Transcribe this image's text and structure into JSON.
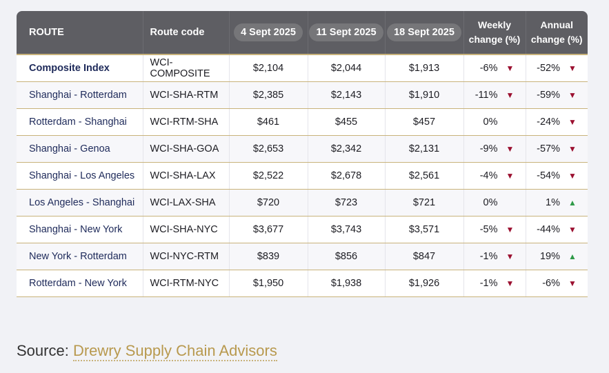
{
  "table": {
    "headers": {
      "route": "ROUTE",
      "route_code": "Route code",
      "date1": "4 Sept 2025",
      "date2": "11 Sept 2025",
      "date3": "18 Sept 2025",
      "weekly_line1": "Weekly",
      "weekly_line2": "change (%)",
      "annual_line1": "Annual",
      "annual_line2": "change (%)"
    },
    "rows": [
      {
        "route": "Composite Index",
        "code": "WCI-COMPOSITE",
        "d1": "$2,104",
        "d2": "$2,044",
        "d3": "$1,913",
        "weekly": "-6%",
        "weekly_dir": "down",
        "annual": "-52%",
        "annual_dir": "down"
      },
      {
        "route": "Shanghai - Rotterdam",
        "code": "WCI-SHA-RTM",
        "d1": "$2,385",
        "d2": "$2,143",
        "d3": "$1,910",
        "weekly": "-11%",
        "weekly_dir": "down",
        "annual": "-59%",
        "annual_dir": "down"
      },
      {
        "route": "Rotterdam - Shanghai",
        "code": "WCI-RTM-SHA",
        "d1": "$461",
        "d2": "$455",
        "d3": "$457",
        "weekly": "0%",
        "weekly_dir": "none",
        "annual": "-24%",
        "annual_dir": "down"
      },
      {
        "route": "Shanghai - Genoa",
        "code": "WCI-SHA-GOA",
        "d1": "$2,653",
        "d2": "$2,342",
        "d3": "$2,131",
        "weekly": "-9%",
        "weekly_dir": "down",
        "annual": "-57%",
        "annual_dir": "down"
      },
      {
        "route": "Shanghai - Los Angeles",
        "code": "WCI-SHA-LAX",
        "d1": "$2,522",
        "d2": "$2,678",
        "d3": "$2,561",
        "weekly": "-4%",
        "weekly_dir": "down",
        "annual": "-54%",
        "annual_dir": "down"
      },
      {
        "route": "Los Angeles - Shanghai",
        "code": "WCI-LAX-SHA",
        "d1": "$720",
        "d2": "$723",
        "d3": "$721",
        "weekly": "0%",
        "weekly_dir": "none",
        "annual": "1%",
        "annual_dir": "up"
      },
      {
        "route": "Shanghai - New York",
        "code": "WCI-SHA-NYC",
        "d1": "$3,677",
        "d2": "$3,743",
        "d3": "$3,571",
        "weekly": "-5%",
        "weekly_dir": "down",
        "annual": "-44%",
        "annual_dir": "down"
      },
      {
        "route": "New York - Rotterdam",
        "code": "WCI-NYC-RTM",
        "d1": "$839",
        "d2": "$856",
        "d3": "$847",
        "weekly": "-1%",
        "weekly_dir": "down",
        "annual": "19%",
        "annual_dir": "up"
      },
      {
        "route": "Rotterdam - New York",
        "code": "WCI-RTM-NYC",
        "d1": "$1,950",
        "d2": "$1,938",
        "d3": "$1,926",
        "weekly": "-1%",
        "weekly_dir": "down",
        "annual": "-6%",
        "annual_dir": "down"
      }
    ]
  },
  "source": {
    "label": "Source:",
    "name": "Drewry Supply Chain Advisors"
  },
  "colors": {
    "header_bg": "#5e5e63",
    "down_arrow": "#9b1030",
    "up_arrow": "#2f9a48",
    "accent_gold": "#b8994e"
  }
}
